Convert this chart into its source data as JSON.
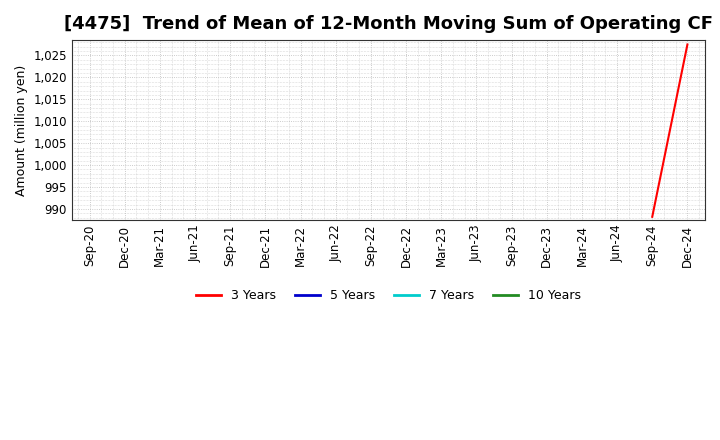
{
  "title": "[4475]  Trend of Mean of 12-Month Moving Sum of Operating CF",
  "ylabel": "Amount (million yen)",
  "ylim": [
    987.5,
    1028.5
  ],
  "yticks": [
    990,
    995,
    1000,
    1005,
    1010,
    1015,
    1020,
    1025
  ],
  "ytick_labels": [
    "990",
    "995",
    "1,000",
    "1,005",
    "1,010",
    "1,015",
    "1,020",
    "1,025"
  ],
  "x_tick_labels": [
    "Sep-20",
    "Dec-20",
    "Mar-21",
    "Jun-21",
    "Sep-21",
    "Dec-21",
    "Mar-22",
    "Jun-22",
    "Sep-22",
    "Dec-22",
    "Mar-23",
    "Jun-23",
    "Sep-23",
    "Dec-23",
    "Mar-24",
    "Jun-24",
    "Sep-24",
    "Dec-24"
  ],
  "line_3yr": {
    "x": [
      16,
      17
    ],
    "y": [
      988.2,
      1027.5
    ],
    "color": "#FF0000",
    "label": "3 Years",
    "linewidth": 1.5
  },
  "line_5yr": {
    "color": "#0000CC",
    "label": "5 Years",
    "linewidth": 1.5
  },
  "line_7yr": {
    "color": "#00CCCC",
    "label": "7 Years",
    "linewidth": 1.5
  },
  "line_10yr": {
    "color": "#228B22",
    "label": "10 Years",
    "linewidth": 1.5
  },
  "background_color": "#FFFFFF",
  "plot_bg_color": "#FFFFFF",
  "grid_color": "#BBBBBB",
  "title_fontsize": 13,
  "axis_fontsize": 9,
  "tick_fontsize": 8.5,
  "legend_fontsize": 9
}
